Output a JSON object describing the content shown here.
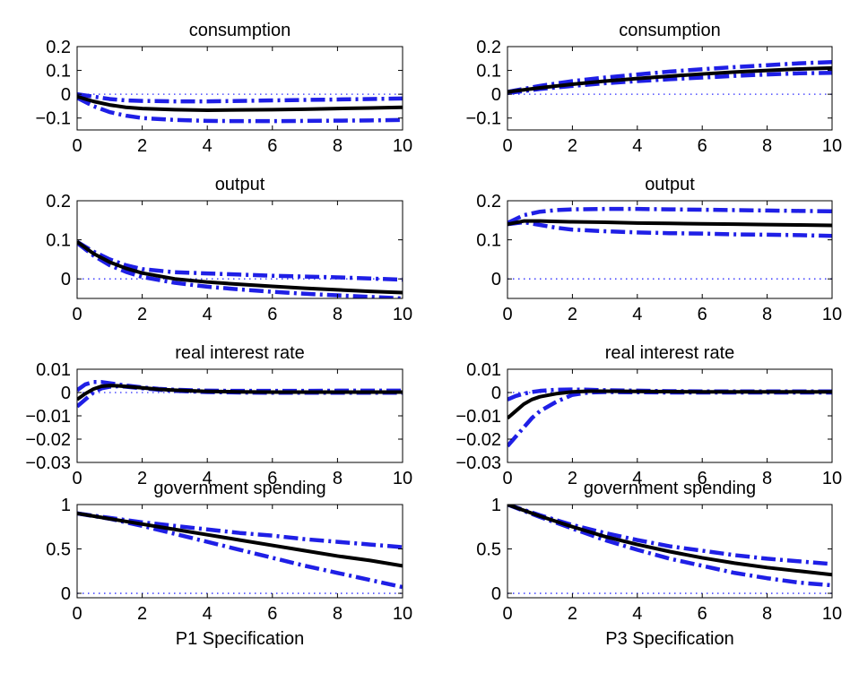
{
  "chart_data": [
    {
      "type": "line",
      "title": "consumption",
      "xlabel": "",
      "xlim": [
        0,
        10
      ],
      "ylim": [
        -0.15,
        0.2
      ],
      "xticks": [
        "0",
        "2",
        "4",
        "6",
        "8",
        "10"
      ],
      "yticks": [
        {
          "v": 0.2,
          "l": "0.2"
        },
        {
          "v": 0.1,
          "l": "0.1"
        },
        {
          "v": 0,
          "l": "0"
        },
        {
          "v": -0.1,
          "l": "−0.1"
        }
      ],
      "zero_line": true,
      "series": [
        {
          "style": "median",
          "x": [
            0,
            0.5,
            1,
            1.5,
            2,
            3,
            4,
            5,
            6,
            7,
            8,
            9,
            10
          ],
          "y": [
            -0.01,
            -0.03,
            -0.045,
            -0.055,
            -0.06,
            -0.065,
            -0.067,
            -0.066,
            -0.065,
            -0.063,
            -0.06,
            -0.058,
            -0.055
          ]
        },
        {
          "style": "upper",
          "x": [
            0,
            0.5,
            1,
            1.5,
            2,
            3,
            4,
            5,
            6,
            7,
            8,
            9,
            10
          ],
          "y": [
            0.0,
            -0.01,
            -0.02,
            -0.026,
            -0.028,
            -0.03,
            -0.03,
            -0.028,
            -0.026,
            -0.024,
            -0.022,
            -0.02,
            -0.018
          ]
        },
        {
          "style": "lower",
          "x": [
            0,
            0.5,
            1,
            1.5,
            2,
            3,
            4,
            5,
            6,
            7,
            8,
            9,
            10
          ],
          "y": [
            -0.015,
            -0.05,
            -0.075,
            -0.09,
            -0.1,
            -0.108,
            -0.112,
            -0.113,
            -0.113,
            -0.112,
            -0.111,
            -0.11,
            -0.108
          ]
        }
      ]
    },
    {
      "type": "line",
      "title": "consumption",
      "xlabel": "",
      "xlim": [
        0,
        10
      ],
      "ylim": [
        -0.15,
        0.2
      ],
      "xticks": [
        "0",
        "2",
        "4",
        "6",
        "8",
        "10"
      ],
      "yticks": [
        {
          "v": 0.2,
          "l": "0.2"
        },
        {
          "v": 0.1,
          "l": "0.1"
        },
        {
          "v": 0,
          "l": "0"
        },
        {
          "v": -0.1,
          "l": "−0.1"
        }
      ],
      "zero_line": true,
      "series": [
        {
          "style": "median",
          "x": [
            0,
            1,
            2,
            3,
            4,
            5,
            6,
            7,
            8,
            9,
            10
          ],
          "y": [
            0.01,
            0.027,
            0.042,
            0.055,
            0.066,
            0.076,
            0.085,
            0.093,
            0.1,
            0.106,
            0.11
          ]
        },
        {
          "style": "upper",
          "x": [
            0,
            1,
            2,
            3,
            4,
            5,
            6,
            7,
            8,
            9,
            10
          ],
          "y": [
            0.01,
            0.035,
            0.055,
            0.07,
            0.083,
            0.095,
            0.105,
            0.114,
            0.122,
            0.13,
            0.135
          ]
        },
        {
          "style": "lower",
          "x": [
            0,
            1,
            2,
            3,
            4,
            5,
            6,
            7,
            8,
            9,
            10
          ],
          "y": [
            0.005,
            0.022,
            0.035,
            0.046,
            0.055,
            0.063,
            0.07,
            0.077,
            0.083,
            0.088,
            0.09
          ]
        }
      ]
    },
    {
      "type": "line",
      "title": "output",
      "xlabel": "",
      "xlim": [
        0,
        10
      ],
      "ylim": [
        -0.05,
        0.2
      ],
      "xticks": [
        "0",
        "2",
        "4",
        "6",
        "8",
        "10"
      ],
      "yticks": [
        {
          "v": 0.2,
          "l": "0.2"
        },
        {
          "v": 0.1,
          "l": "0.1"
        },
        {
          "v": 0,
          "l": "0"
        }
      ],
      "zero_line": true,
      "series": [
        {
          "style": "median",
          "x": [
            0,
            0.5,
            1,
            1.5,
            2,
            3,
            4,
            5,
            6,
            7,
            8,
            9,
            10
          ],
          "y": [
            0.095,
            0.065,
            0.043,
            0.027,
            0.015,
            0.0,
            -0.008,
            -0.014,
            -0.019,
            -0.024,
            -0.028,
            -0.032,
            -0.035
          ]
        },
        {
          "style": "upper",
          "x": [
            0,
            0.5,
            1,
            1.5,
            2,
            3,
            4,
            5,
            6,
            7,
            8,
            9,
            10
          ],
          "y": [
            0.095,
            0.07,
            0.05,
            0.035,
            0.025,
            0.017,
            0.014,
            0.011,
            0.008,
            0.006,
            0.004,
            0.001,
            -0.002
          ]
        },
        {
          "style": "lower",
          "x": [
            0,
            0.5,
            1,
            1.5,
            2,
            3,
            4,
            5,
            6,
            7,
            8,
            9,
            10
          ],
          "y": [
            0.092,
            0.06,
            0.035,
            0.018,
            0.005,
            -0.01,
            -0.02,
            -0.027,
            -0.033,
            -0.038,
            -0.042,
            -0.046,
            -0.05
          ]
        }
      ]
    },
    {
      "type": "line",
      "title": "output",
      "xlabel": "",
      "xlim": [
        0,
        10
      ],
      "ylim": [
        -0.05,
        0.2
      ],
      "xticks": [
        "0",
        "2",
        "4",
        "6",
        "8",
        "10"
      ],
      "yticks": [
        {
          "v": 0.2,
          "l": "0.2"
        },
        {
          "v": 0.1,
          "l": "0.1"
        },
        {
          "v": 0,
          "l": "0"
        }
      ],
      "zero_line": true,
      "series": [
        {
          "style": "median",
          "x": [
            0,
            0.5,
            1,
            1.5,
            2,
            3,
            4,
            5,
            6,
            7,
            8,
            9,
            10
          ],
          "y": [
            0.14,
            0.148,
            0.148,
            0.147,
            0.146,
            0.145,
            0.143,
            0.142,
            0.141,
            0.14,
            0.139,
            0.138,
            0.137
          ]
        },
        {
          "style": "upper",
          "x": [
            0,
            0.5,
            1,
            1.5,
            2,
            3,
            4,
            5,
            6,
            7,
            8,
            9,
            10
          ],
          "y": [
            0.143,
            0.163,
            0.172,
            0.176,
            0.178,
            0.179,
            0.179,
            0.178,
            0.177,
            0.176,
            0.175,
            0.174,
            0.173
          ]
        },
        {
          "style": "lower",
          "x": [
            0,
            0.5,
            1,
            1.5,
            2,
            3,
            4,
            5,
            6,
            7,
            8,
            9,
            10
          ],
          "y": [
            0.14,
            0.145,
            0.138,
            0.131,
            0.126,
            0.122,
            0.119,
            0.117,
            0.116,
            0.114,
            0.113,
            0.112,
            0.11
          ]
        }
      ]
    },
    {
      "type": "line",
      "title": "real interest rate",
      "xlabel": "",
      "xlim": [
        0,
        10
      ],
      "ylim": [
        -0.03,
        0.01
      ],
      "xticks": [
        "0",
        "2",
        "4",
        "6",
        "8",
        "10"
      ],
      "yticks": [
        {
          "v": 0.01,
          "l": "0.01"
        },
        {
          "v": 0,
          "l": "0"
        },
        {
          "v": -0.01,
          "l": "−0.01"
        },
        {
          "v": -0.02,
          "l": "−0.02"
        },
        {
          "v": -0.03,
          "l": "−0.03"
        }
      ],
      "zero_line": true,
      "series": [
        {
          "style": "median",
          "x": [
            0,
            0.25,
            0.5,
            0.75,
            1,
            1.25,
            1.5,
            2,
            2.5,
            3,
            4,
            5,
            6,
            7,
            8,
            9,
            10
          ],
          "y": [
            -0.003,
            -0.0005,
            0.0015,
            0.0027,
            0.003,
            0.0029,
            0.0026,
            0.002,
            0.0014,
            0.001,
            0.0005,
            0.0003,
            0.0002,
            0.0002,
            0.0002,
            0.0002,
            0.0002
          ]
        },
        {
          "style": "upper",
          "x": [
            0,
            0.25,
            0.5,
            0.75,
            1,
            1.25,
            1.5,
            2,
            2.5,
            3,
            4,
            5,
            6,
            7,
            8,
            9,
            10
          ],
          "y": [
            0.001,
            0.0035,
            0.0045,
            0.0045,
            0.004,
            0.0035,
            0.003,
            0.0022,
            0.0016,
            0.0012,
            0.0008,
            0.0007,
            0.0007,
            0.0007,
            0.0008,
            0.0008,
            0.0008
          ]
        },
        {
          "style": "lower",
          "x": [
            0,
            0.25,
            0.5,
            0.75,
            1,
            1.25,
            1.5,
            2,
            2.5,
            3,
            4,
            5,
            6,
            7,
            8,
            9,
            10
          ],
          "y": [
            -0.006,
            -0.003,
            0.0,
            0.0018,
            0.0025,
            0.0027,
            0.0025,
            0.0018,
            0.0012,
            0.0007,
            0.0002,
            0.0,
            -0.0001,
            -0.0001,
            -0.0001,
            -0.0001,
            -0.0001
          ]
        }
      ]
    },
    {
      "type": "line",
      "title": "real interest rate",
      "xlabel": "",
      "xlim": [
        0,
        10
      ],
      "ylim": [
        -0.03,
        0.01
      ],
      "xticks": [
        "0",
        "2",
        "4",
        "6",
        "8",
        "10"
      ],
      "yticks": [
        {
          "v": 0.01,
          "l": "0.01"
        },
        {
          "v": 0,
          "l": "0"
        },
        {
          "v": -0.01,
          "l": "−0.01"
        },
        {
          "v": -0.02,
          "l": "−0.02"
        },
        {
          "v": -0.03,
          "l": "−0.03"
        }
      ],
      "zero_line": true,
      "series": [
        {
          "style": "median",
          "x": [
            0,
            0.25,
            0.5,
            0.75,
            1,
            1.5,
            2,
            2.5,
            3,
            4,
            5,
            6,
            7,
            8,
            9,
            10
          ],
          "y": [
            -0.011,
            -0.008,
            -0.005,
            -0.003,
            -0.0018,
            -0.0005,
            0.0003,
            0.0006,
            0.0006,
            0.0005,
            0.0004,
            0.0003,
            0.0003,
            0.0003,
            0.0003,
            0.0003
          ]
        },
        {
          "style": "upper",
          "x": [
            0,
            0.25,
            0.5,
            0.75,
            1,
            1.5,
            2,
            2.5,
            3,
            4,
            5,
            6,
            7,
            8,
            9,
            10
          ],
          "y": [
            -0.003,
            -0.0015,
            -0.0005,
            0.0002,
            0.0007,
            0.0012,
            0.0013,
            0.0012,
            0.001,
            0.0008,
            0.0006,
            0.0005,
            0.0005,
            0.0005,
            0.0005,
            0.0005
          ]
        },
        {
          "style": "lower",
          "x": [
            0,
            0.25,
            0.5,
            0.75,
            1,
            1.5,
            2,
            2.5,
            3,
            4,
            5,
            6,
            7,
            8,
            9,
            10
          ],
          "y": [
            -0.023,
            -0.019,
            -0.015,
            -0.011,
            -0.008,
            -0.004,
            -0.001,
            0.0,
            0.0002,
            0.0001,
            0.0,
            0.0,
            0.0,
            0.0,
            0.0,
            0.0
          ]
        }
      ]
    },
    {
      "type": "line",
      "title": "government spending",
      "xlabel": "P1 Specification",
      "xlim": [
        0,
        10
      ],
      "ylim": [
        -0.05,
        1.0
      ],
      "xticks": [
        "0",
        "2",
        "4",
        "6",
        "8",
        "10"
      ],
      "yticks": [
        {
          "v": 1,
          "l": "1"
        },
        {
          "v": 0.5,
          "l": "0.5"
        },
        {
          "v": 0,
          "l": "0"
        }
      ],
      "zero_line": true,
      "series": [
        {
          "style": "median",
          "x": [
            0,
            1,
            2,
            3,
            4,
            5,
            6,
            7,
            8,
            9,
            10
          ],
          "y": [
            0.9,
            0.84,
            0.78,
            0.72,
            0.66,
            0.6,
            0.54,
            0.48,
            0.42,
            0.37,
            0.31
          ]
        },
        {
          "style": "upper",
          "x": [
            0,
            1,
            2,
            3,
            4,
            5,
            6,
            7,
            8,
            9,
            10
          ],
          "y": [
            0.9,
            0.85,
            0.8,
            0.76,
            0.72,
            0.68,
            0.65,
            0.61,
            0.58,
            0.55,
            0.52
          ]
        },
        {
          "style": "lower",
          "x": [
            0,
            1,
            2,
            3,
            4,
            5,
            6,
            7,
            8,
            9,
            10
          ],
          "y": [
            0.9,
            0.84,
            0.76,
            0.67,
            0.58,
            0.49,
            0.4,
            0.31,
            0.23,
            0.15,
            0.07
          ]
        }
      ]
    },
    {
      "type": "line",
      "title": "government spending",
      "xlabel": "P3 Specification",
      "xlim": [
        0,
        10
      ],
      "ylim": [
        -0.05,
        1.0
      ],
      "xticks": [
        "0",
        "2",
        "4",
        "6",
        "8",
        "10"
      ],
      "yticks": [
        {
          "v": 1,
          "l": "1"
        },
        {
          "v": 0.5,
          "l": "0.5"
        },
        {
          "v": 0,
          "l": "0"
        }
      ],
      "zero_line": true,
      "series": [
        {
          "style": "median",
          "x": [
            0,
            1,
            2,
            3,
            4,
            5,
            6,
            7,
            8,
            9,
            10
          ],
          "y": [
            1.0,
            0.87,
            0.75,
            0.64,
            0.55,
            0.47,
            0.4,
            0.34,
            0.29,
            0.25,
            0.21
          ]
        },
        {
          "style": "upper",
          "x": [
            0,
            1,
            2,
            3,
            4,
            5,
            6,
            7,
            8,
            9,
            10
          ],
          "y": [
            1.0,
            0.88,
            0.77,
            0.68,
            0.6,
            0.53,
            0.48,
            0.43,
            0.39,
            0.36,
            0.33
          ]
        },
        {
          "style": "lower",
          "x": [
            0,
            1,
            2,
            3,
            4,
            5,
            6,
            7,
            8,
            9,
            10
          ],
          "y": [
            1.0,
            0.86,
            0.73,
            0.6,
            0.49,
            0.39,
            0.31,
            0.23,
            0.17,
            0.12,
            0.09
          ]
        }
      ]
    }
  ],
  "colors": {
    "median": "#000000",
    "band": "#1f1fe6",
    "zero_line": "#2a2aff",
    "frame": "#000000"
  }
}
